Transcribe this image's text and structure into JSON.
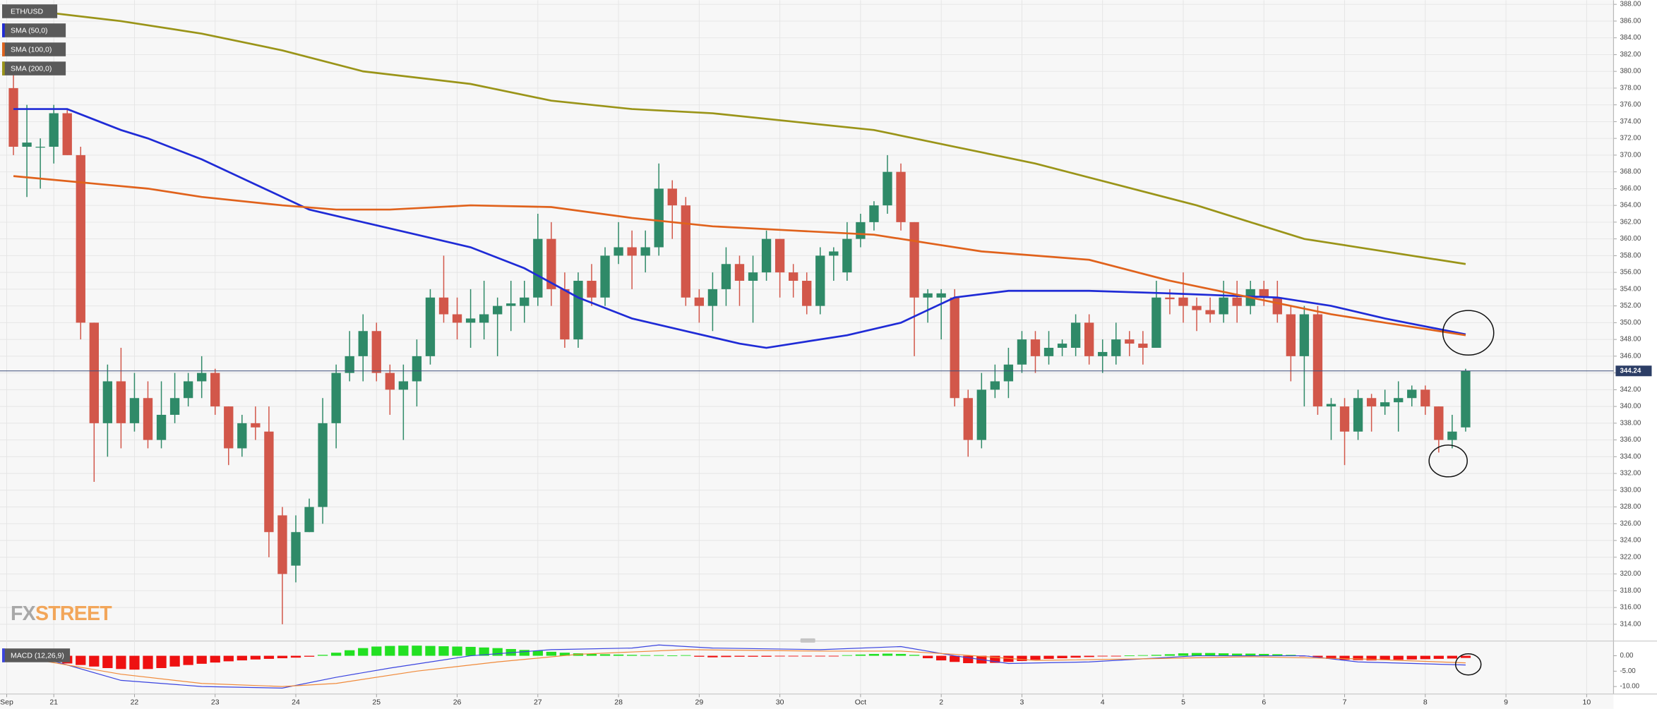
{
  "logo": [
    "FX",
    "STREET"
  ],
  "chart_data": [
    {
      "type": "candlestick",
      "title": "ETH/USD",
      "up_color": "#2f8a68",
      "down_color": "#d2574a",
      "open": [
        378,
        371,
        371,
        371,
        375,
        370,
        350,
        338,
        343,
        338,
        341,
        336,
        339,
        341,
        343,
        344,
        340,
        335,
        338,
        337,
        327,
        321,
        325,
        328,
        338,
        344,
        346,
        349,
        344,
        342,
        343,
        346,
        353,
        351,
        350,
        350,
        351,
        352,
        352,
        353,
        360,
        354,
        348,
        355,
        353,
        358,
        359,
        358,
        359,
        366,
        364,
        353,
        352,
        354,
        357,
        355,
        356,
        360,
        356,
        355,
        352,
        358,
        356,
        360,
        362,
        364,
        368,
        362,
        353,
        353,
        353,
        341,
        336,
        342,
        343,
        345,
        348,
        346,
        347,
        347,
        350,
        346,
        346,
        348,
        347.5,
        347,
        353,
        353,
        352,
        351.5,
        351,
        353,
        352,
        354,
        353,
        351,
        346,
        351,
        340,
        340,
        337,
        341,
        340,
        340.5,
        341,
        342,
        340,
        336,
        337.5
      ],
      "high": [
        380,
        376,
        372,
        376,
        375.5,
        371,
        350,
        345,
        347,
        344,
        343,
        343,
        344,
        344,
        346,
        344.5,
        340,
        339,
        340,
        340,
        328,
        327,
        329,
        341,
        345,
        349,
        351,
        350,
        345,
        345,
        348,
        354,
        358,
        353,
        354,
        355,
        353,
        355,
        355,
        363,
        362,
        356,
        356,
        357,
        359,
        362,
        361,
        361,
        369,
        367,
        365,
        354,
        356,
        359,
        358,
        358,
        361,
        360,
        357,
        356,
        359,
        359,
        362,
        363,
        364.5,
        370,
        369,
        362,
        354,
        354,
        354,
        342,
        344,
        345,
        347,
        349,
        349,
        349,
        348,
        351,
        351,
        348,
        350,
        349,
        349,
        355,
        354,
        356,
        353,
        353,
        355,
        355,
        355,
        355,
        355,
        352,
        352,
        352,
        341,
        341,
        342,
        341.5,
        342,
        343,
        342.5,
        342.5,
        340,
        339,
        344.5
      ],
      "low": [
        370,
        365,
        366,
        369,
        370,
        348,
        331,
        334,
        335,
        337,
        335,
        335,
        338,
        340,
        341,
        339,
        333,
        334,
        336,
        322,
        314,
        319,
        325,
        326,
        335,
        343,
        343,
        343,
        339,
        336,
        340,
        345,
        350,
        348,
        347,
        348,
        346,
        349,
        350,
        352,
        352,
        347,
        347,
        352,
        352,
        357,
        354,
        356,
        358,
        360,
        352,
        350,
        349,
        352,
        352,
        350,
        355,
        353,
        353,
        351,
        351,
        355,
        355,
        359,
        361,
        363,
        361,
        346,
        350,
        348,
        340,
        334,
        335,
        341,
        341,
        344,
        344,
        345,
        346,
        346,
        345,
        344,
        345,
        346,
        345,
        347,
        351,
        350,
        349,
        350,
        350,
        350,
        351,
        352,
        350,
        343,
        340,
        339,
        336,
        333,
        336,
        337,
        339,
        337,
        340,
        339,
        334.5,
        335,
        337
      ],
      "close": [
        371,
        371.5,
        371,
        375,
        370,
        350,
        338,
        343,
        338,
        341,
        336,
        339,
        341,
        343,
        344,
        340,
        335,
        338,
        337.5,
        325,
        320,
        325,
        328,
        338,
        344,
        346,
        349,
        344,
        342,
        343,
        346,
        353,
        351,
        350,
        350.5,
        351,
        352,
        352.3,
        353,
        360,
        354,
        348,
        355,
        353,
        358,
        359,
        358,
        359,
        366,
        364,
        353,
        352,
        354,
        357,
        355,
        356,
        360,
        356,
        355,
        352,
        358,
        358.5,
        360,
        362,
        364,
        368,
        362,
        353,
        353.5,
        353.5,
        341,
        336,
        342,
        343,
        345,
        348,
        346,
        347,
        347.5,
        350,
        346,
        346.5,
        348,
        347.5,
        347,
        353,
        352.8,
        352,
        351.5,
        351,
        353,
        352,
        354,
        353,
        351,
        346,
        351,
        340,
        340.3,
        337,
        341,
        340,
        340.5,
        341,
        342,
        340,
        336,
        337,
        344.24
      ],
      "series": [
        {
          "name": "SMA (50,0)",
          "color": "#1f2bd6",
          "x": [
            0,
            4,
            8,
            10,
            14,
            18,
            22,
            26,
            30,
            34,
            38,
            42,
            46,
            50,
            54,
            56,
            58,
            62,
            66,
            68,
            70,
            74,
            80,
            86,
            94,
            98,
            102,
            108
          ],
          "values": [
            375.5,
            375.5,
            373,
            372,
            369.5,
            366.5,
            363.5,
            362,
            360.5,
            359,
            356.5,
            353,
            350.5,
            349,
            347.5,
            347,
            347.5,
            348.5,
            350,
            351.5,
            353,
            353.8,
            353.8,
            353.5,
            353,
            352,
            350.5,
            348.6
          ]
        },
        {
          "name": "SMA (100,0)",
          "color": "#e0621c",
          "x": [
            0,
            10,
            14,
            20,
            24,
            28,
            34,
            40,
            46,
            52,
            58,
            64,
            68,
            72,
            80,
            86,
            92,
            98,
            102,
            108
          ],
          "values": [
            367.5,
            366,
            365,
            364,
            363.5,
            363.5,
            364,
            363.8,
            362.5,
            361.5,
            361,
            360.5,
            359.5,
            358.5,
            357.5,
            355,
            353,
            351,
            350,
            348.5
          ]
        },
        {
          "name": "SMA (200,0)",
          "color": "#9a9418",
          "x": [
            0,
            8,
            14,
            20,
            26,
            34,
            40,
            46,
            52,
            58,
            64,
            70,
            76,
            82,
            88,
            92,
            96,
            100,
            108
          ],
          "values": [
            387.5,
            386,
            384.5,
            382.5,
            380,
            378.5,
            376.5,
            375.5,
            375,
            374,
            373,
            371,
            369,
            366.5,
            364,
            362,
            360,
            359,
            357
          ]
        }
      ],
      "last_price": 344.24,
      "xlim": [
        -1,
        119
      ],
      "ylim": [
        312.5,
        388.5
      ],
      "yticks": [
        {
          "value": 314,
          "label": "314.00"
        },
        {
          "value": 316,
          "label": "316.00"
        },
        {
          "value": 318,
          "label": "318.00"
        },
        {
          "value": 320,
          "label": "320.00"
        },
        {
          "value": 322,
          "label": "322.00"
        },
        {
          "value": 324,
          "label": "324.00"
        },
        {
          "value": 326,
          "label": "326.00"
        },
        {
          "value": 328,
          "label": "328.00"
        },
        {
          "value": 330,
          "label": "330.00"
        },
        {
          "value": 332,
          "label": "332.00"
        },
        {
          "value": 334,
          "label": "334.00"
        },
        {
          "value": 336,
          "label": "336.00"
        },
        {
          "value": 338,
          "label": "338.00"
        },
        {
          "value": 340,
          "label": "340.00"
        },
        {
          "value": 342,
          "label": "342.00"
        },
        {
          "value": 344,
          "label": "344.00"
        },
        {
          "value": 346,
          "label": "346.00"
        },
        {
          "value": 348,
          "label": "348.00"
        },
        {
          "value": 350,
          "label": "350.00"
        },
        {
          "value": 352,
          "label": "352.00"
        },
        {
          "value": 354,
          "label": "354.00"
        },
        {
          "value": 356,
          "label": "356.00"
        },
        {
          "value": 358,
          "label": "358.00"
        },
        {
          "value": 360,
          "label": "360.00"
        },
        {
          "value": 362,
          "label": "362.00"
        },
        {
          "value": 364,
          "label": "364.00"
        },
        {
          "value": 366,
          "label": "366.00"
        },
        {
          "value": 368,
          "label": "368.00"
        },
        {
          "value": 370,
          "label": "370.00"
        },
        {
          "value": 372,
          "label": "372.00"
        },
        {
          "value": 374,
          "label": "374.00"
        },
        {
          "value": 376,
          "label": "376.00"
        },
        {
          "value": 378,
          "label": "378.00"
        },
        {
          "value": 380,
          "label": "380.00"
        },
        {
          "value": 382,
          "label": "382.00"
        },
        {
          "value": 384,
          "label": "384.00"
        },
        {
          "value": 386,
          "label": "386.00"
        },
        {
          "value": 388,
          "label": "388.00"
        }
      ],
      "xticks": [
        {
          "value": -0.5,
          "label": "Sep"
        },
        {
          "value": 3,
          "label": "21"
        },
        {
          "value": 9,
          "label": "22"
        },
        {
          "value": 15,
          "label": "23"
        },
        {
          "value": 21,
          "label": "24"
        },
        {
          "value": 27,
          "label": "25"
        },
        {
          "value": 33,
          "label": "26"
        },
        {
          "value": 39,
          "label": "27"
        },
        {
          "value": 45,
          "label": "28"
        },
        {
          "value": 51,
          "label": "29"
        },
        {
          "value": 57,
          "label": "30"
        },
        {
          "value": 63,
          "label": "Oct"
        },
        {
          "value": 69,
          "label": "2"
        },
        {
          "value": 75,
          "label": "3"
        },
        {
          "value": 81,
          "label": "4"
        },
        {
          "value": 87,
          "label": "5"
        },
        {
          "value": 93,
          "label": "6"
        },
        {
          "value": 99,
          "label": "7"
        },
        {
          "value": 105,
          "label": "8"
        },
        {
          "value": 111,
          "label": "9"
        },
        {
          "value": 117,
          "label": "10"
        }
      ],
      "grid": true
    },
    {
      "type": "macd",
      "title": "MACD (12,26,9)",
      "histogram": [
        -0.8,
        -1.2,
        -1.6,
        -2,
        -2.5,
        -3,
        -3.5,
        -4,
        -4.3,
        -4.5,
        -4.3,
        -4,
        -3.5,
        -3,
        -2.6,
        -2.2,
        -1.8,
        -1.5,
        -1.2,
        -1,
        -0.8,
        -0.6,
        -0.3,
        0.3,
        1,
        1.8,
        2.5,
        3,
        3.2,
        3.3,
        3.3,
        3.2,
        3.1,
        3,
        2.9,
        2.7,
        2.5,
        2.2,
        1.9,
        1.6,
        1.3,
        1,
        0.8,
        0.6,
        0.5,
        0.4,
        0.3,
        0.2,
        0.2,
        0.1,
        0.2,
        -0.3,
        -0.5,
        -0.4,
        -0.3,
        -0.3,
        -0.3,
        -0.2,
        -0.2,
        -0.2,
        -0.1,
        -0.1,
        0.2,
        0.4,
        0.6,
        0.7,
        0.6,
        0.3,
        -0.8,
        -1.5,
        -2,
        -2.4,
        -2.5,
        -2.3,
        -2,
        -1.7,
        -1.3,
        -1,
        -0.8,
        -0.6,
        -0.4,
        -0.2,
        -0.1,
        0.1,
        0.2,
        0.3,
        0.5,
        0.8,
        0.9,
        0.9,
        0.8,
        0.7,
        0.7,
        0.6,
        0.5,
        0.3,
        -0.2,
        -0.5,
        -1,
        -1.3,
        -1.4,
        -1.5,
        -1.4,
        -1.3,
        -1.2,
        -1.1,
        -1,
        -0.9,
        -0.7
      ],
      "up_color": "#22e022",
      "down_color": "#ee1111",
      "series": [
        {
          "color": "#3a44e0",
          "x": [
            0,
            8,
            14,
            20,
            24,
            28,
            34,
            40,
            46,
            48,
            52,
            60,
            66,
            70,
            74,
            80,
            88,
            96,
            100,
            108
          ],
          "values": [
            2,
            -8,
            -10,
            -10.5,
            -7,
            -4,
            0,
            2,
            2.5,
            3.5,
            2.5,
            2,
            3,
            0,
            -2.5,
            -2,
            0,
            0,
            -2,
            -3
          ]
        },
        {
          "color": "#f08a3a",
          "x": [
            0,
            8,
            14,
            20,
            24,
            30,
            36,
            42,
            50,
            60,
            66,
            70,
            76,
            84,
            92,
            100,
            108
          ],
          "values": [
            0,
            -6,
            -9,
            -10,
            -9,
            -5,
            -2,
            0.5,
            2,
            1.5,
            1.5,
            0.5,
            -1.5,
            -1,
            -0.3,
            -1,
            -2.3
          ]
        }
      ],
      "xlim": [
        -1,
        119
      ],
      "ylim": [
        -14.5,
        4.1
      ],
      "yticks": [
        {
          "value": 0,
          "label": "0.00"
        },
        {
          "value": -5,
          "label": "-5.00"
        },
        {
          "value": -10,
          "label": "-10.00"
        }
      ]
    }
  ]
}
